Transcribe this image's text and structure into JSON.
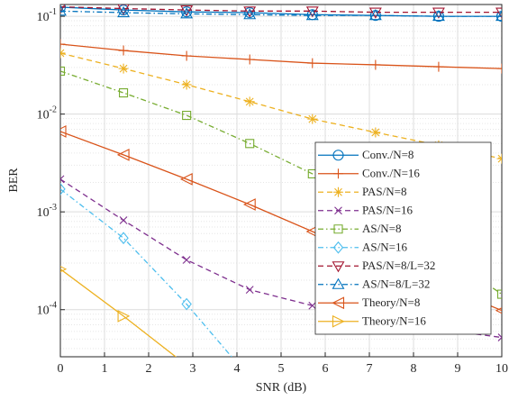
{
  "chart_data": {
    "type": "line",
    "xlabel": "SNR (dB)",
    "ylabel": "BER",
    "x": [
      0,
      1.43,
      2.86,
      4.29,
      5.71,
      7.14,
      8.57,
      10
    ],
    "xlim": [
      0,
      10
    ],
    "xticks": [
      0,
      1,
      2,
      3,
      4,
      5,
      6,
      7,
      8,
      9,
      10
    ],
    "ylim": [
      3.3e-05,
      0.132
    ],
    "yscale": "log",
    "yticks": [
      {
        "value": 0.0001,
        "label": "10^-4"
      },
      {
        "value": 0.001,
        "label": "10^-3"
      },
      {
        "value": 0.01,
        "label": "10^-2"
      },
      {
        "value": 0.1,
        "label": "10^-1"
      }
    ],
    "grid": true,
    "minor_grid": true,
    "legend_loc": "east",
    "series": [
      {
        "name": "Conv./N=8",
        "color": "#0072BD",
        "dash": "solid",
        "marker": "o",
        "values": [
          0.124,
          0.116,
          0.111,
          0.109,
          0.104,
          0.102,
          0.1,
          0.1
        ]
      },
      {
        "name": "Conv./N=16",
        "color": "#D95319",
        "dash": "solid",
        "marker": "+",
        "values": [
          0.0519,
          0.0447,
          0.0394,
          0.0362,
          0.0332,
          0.0319,
          0.0305,
          0.0292
        ]
      },
      {
        "name": "PAS/N=8",
        "color": "#EDB120",
        "dash": "dashed",
        "marker": "*",
        "values": [
          0.042,
          0.0292,
          0.02,
          0.0134,
          0.0089,
          0.0065,
          0.0048,
          0.0035
        ]
      },
      {
        "name": "PAS/N=16",
        "color": "#7E2F8E",
        "dash": "dashed",
        "marker": "x",
        "values": [
          0.00216,
          0.00082,
          0.000323,
          0.00016,
          0.00011,
          7.9e-05,
          6.3e-05,
          5.2e-05
        ]
      },
      {
        "name": "AS/N=8",
        "color": "#77AC30",
        "dash": "dashdot",
        "marker": "s",
        "values": [
          0.0275,
          0.0165,
          0.0097,
          0.005,
          0.00245,
          0.0011,
          0.0004,
          0.000144
        ]
      },
      {
        "name": "AS/N=16",
        "color": "#4DBEEE",
        "dash": "dashdot",
        "marker": "d",
        "values": [
          0.00171,
          0.00054,
          0.000114,
          2e-05,
          null,
          null,
          null,
          null
        ]
      },
      {
        "name": "PAS/N=8/L=32",
        "color": "#A2142F",
        "dash": "dashed",
        "marker": "v",
        "values": [
          0.125,
          0.12,
          0.116,
          0.113,
          0.113,
          0.11,
          0.11,
          0.11
        ]
      },
      {
        "name": "AS/N=8/L=32",
        "color": "#0072BD",
        "dash": "dashdot",
        "marker": "^",
        "values": [
          0.113,
          0.109,
          0.106,
          0.104,
          0.102,
          0.102,
          0.1,
          0.1
        ]
      },
      {
        "name": "Theory/N=8",
        "color": "#D95319",
        "dash": "solid",
        "marker": "<",
        "values": [
          0.00664,
          0.00383,
          0.00216,
          0.00119,
          0.00063,
          0.00033,
          0.000182,
          9.8e-05
        ]
      },
      {
        "name": "Theory/N=16",
        "color": "#EDB120",
        "dash": "solid",
        "marker": ">",
        "values": [
          0.00026,
          8.6e-05,
          2.7e-05,
          null,
          null,
          null,
          null,
          null
        ]
      }
    ]
  }
}
